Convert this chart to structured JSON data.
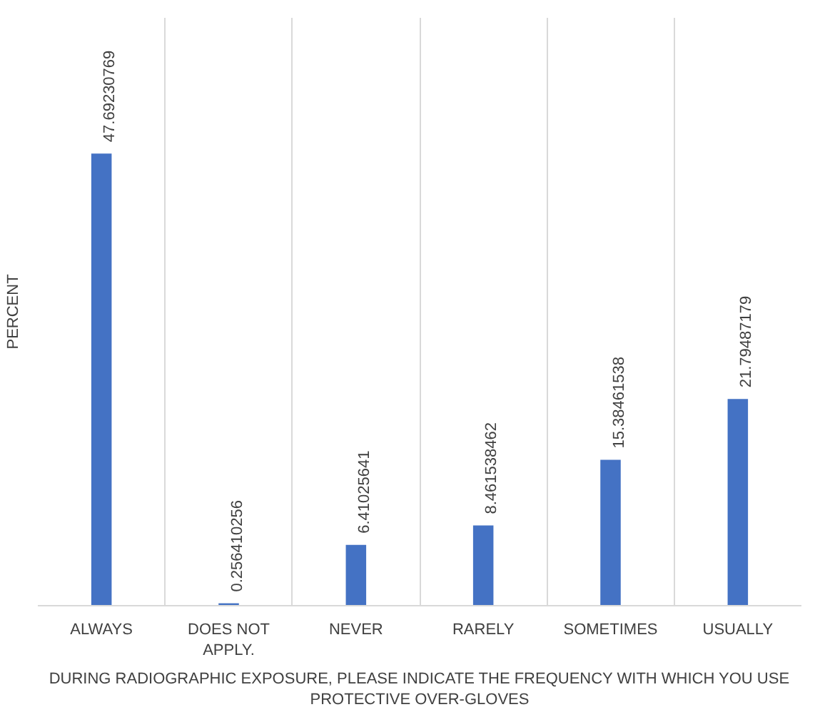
{
  "chart_data": {
    "type": "bar",
    "ylabel": "PERCENT",
    "xlabel": "DURING RADIOGRAPHIC EXPOSURE, PLEASE INDICATE THE FREQUENCY WITH WHICH YOU USE PROTECTIVE OVER-GLOVES",
    "categories": [
      "ALWAYS",
      "DOES NOT APPLY.",
      "NEVER",
      "RARELY",
      "SOMETIMES",
      "USUALLY"
    ],
    "values": [
      47.69230769,
      0.256410256,
      6.41025641,
      8.461538462,
      15.38461538,
      21.79487179
    ],
    "color": "#4472c4",
    "data_labels": true,
    "grid": "x",
    "tick_labels": "x"
  }
}
